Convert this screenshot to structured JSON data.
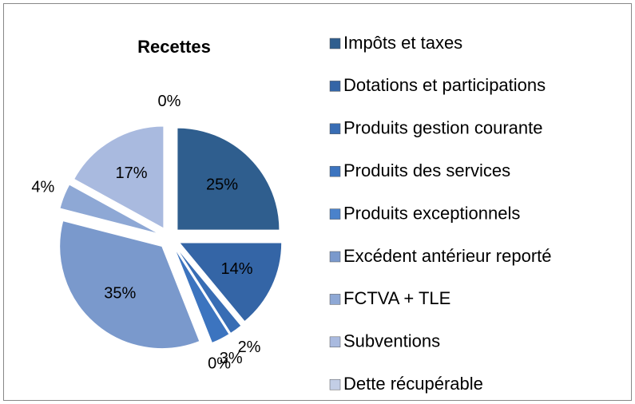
{
  "chart_data": {
    "type": "pie",
    "title": "Recettes",
    "categories": [
      "Impôts et taxes",
      "Dotations et participations",
      "Produits gestion courante",
      "Produits des services",
      "Produits exceptionnels",
      "Excédent antérieur reporté",
      "FCTVA + TLE",
      "Subventions",
      "Dette récupérable"
    ],
    "values": [
      25,
      14,
      2,
      3,
      0,
      35,
      4,
      17,
      0
    ],
    "value_labels": [
      "25%",
      "14%",
      "2%",
      "3%",
      "0%",
      "35%",
      "4%",
      "17%",
      "0%"
    ],
    "colors": [
      "#2f5e8e",
      "#3465a6",
      "#386db4",
      "#3c74bf",
      "#4a82cb",
      "#7a99cc",
      "#8ea8d5",
      "#a9badf",
      "#c3cee6"
    ],
    "legend": "right"
  }
}
